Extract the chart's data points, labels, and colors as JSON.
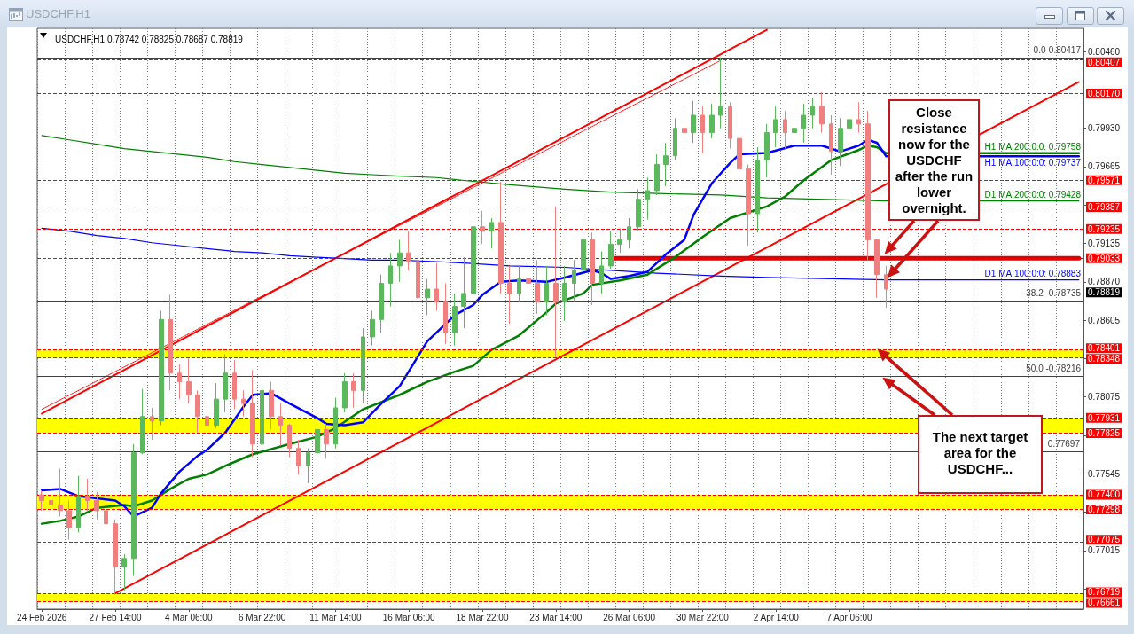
{
  "chart_data": {
    "type": "candlestick",
    "title": "USDCHF,H1",
    "subtitle": "USDCHF,H1 0.78742 0.78825 0.78687 0.78819",
    "categories": [
      "24 Feb 2026",
      null,
      null,
      null,
      null,
      null,
      null,
      null,
      "27 Feb 14:00",
      null,
      null,
      null,
      null,
      null,
      null,
      null,
      "4 Mar 06:00",
      null,
      null,
      null,
      null,
      null,
      null,
      null,
      "6 Mar 22:00",
      null,
      null,
      null,
      null,
      null,
      null,
      null,
      "11 Mar 14:00",
      null,
      null,
      null,
      null,
      null,
      null,
      null,
      "16 Mar 06:00",
      null,
      null,
      null,
      null,
      null,
      null,
      null,
      "18 Mar 22:00",
      null,
      null,
      null,
      null,
      null,
      null,
      null,
      "23 Mar 14:00",
      null,
      null,
      null,
      null,
      null,
      null,
      null,
      "26 Mar 06:00",
      null,
      null,
      null,
      null,
      null,
      null,
      null,
      "30 Mar 22:00",
      null,
      null,
      null,
      null,
      null,
      null,
      null,
      "2 Apr 14:00",
      null,
      null,
      null,
      null,
      null,
      null,
      null,
      "7 Apr 06:00",
      null,
      null,
      null,
      null,
      null,
      null,
      null,
      null,
      null,
      null,
      null,
      null,
      null,
      null,
      null,
      null,
      null,
      null,
      null,
      null,
      null,
      null,
      null,
      null,
      null
    ],
    "series": [
      {
        "type": "candlestick",
        "ohlc": [
          [
            0.774,
            0.7743,
            0.7729,
            0.7736
          ],
          [
            0.7736,
            0.7739,
            0.7723,
            0.7733
          ],
          [
            0.7733,
            0.7758,
            0.7725,
            0.7729
          ],
          [
            0.7729,
            0.7736,
            0.7709,
            0.7717
          ],
          [
            0.7717,
            0.7753,
            0.7714,
            0.7739
          ],
          [
            0.7739,
            0.7751,
            0.7729,
            0.7736
          ],
          [
            0.7736,
            0.7742,
            0.7723,
            0.7729
          ],
          [
            0.7729,
            0.7736,
            0.7716,
            0.772
          ],
          [
            0.772,
            0.7723,
            0.7671,
            0.769
          ],
          [
            0.769,
            0.7699,
            0.7674,
            0.7696
          ],
          [
            0.7696,
            0.7775,
            0.7684,
            0.7769
          ],
          [
            0.7769,
            0.7813,
            0.7768,
            0.7794
          ],
          [
            0.7794,
            0.78,
            0.7778,
            0.7791
          ],
          [
            0.7791,
            0.7867,
            0.7788,
            0.7861
          ],
          [
            0.7861,
            0.7878,
            0.7812,
            0.7824
          ],
          [
            0.7824,
            0.783,
            0.7806,
            0.7818
          ],
          [
            0.7818,
            0.7834,
            0.7803,
            0.7809
          ],
          [
            0.7809,
            0.7812,
            0.7783,
            0.7794
          ],
          [
            0.7794,
            0.7799,
            0.7782,
            0.7788
          ],
          [
            0.7788,
            0.7817,
            0.7786,
            0.7806
          ],
          [
            0.7806,
            0.7837,
            0.7797,
            0.7824
          ],
          [
            0.7824,
            0.7833,
            0.7799,
            0.7806
          ],
          [
            0.7806,
            0.7812,
            0.7794,
            0.7803
          ],
          [
            0.7803,
            0.7826,
            0.7766,
            0.7775
          ],
          [
            0.7775,
            0.7824,
            0.7756,
            0.7812
          ],
          [
            0.7812,
            0.7818,
            0.7785,
            0.7794
          ],
          [
            0.7794,
            0.7803,
            0.7774,
            0.7788
          ],
          [
            0.7788,
            0.7789,
            0.7766,
            0.7772
          ],
          [
            0.7772,
            0.7778,
            0.7754,
            0.776
          ],
          [
            0.776,
            0.7772,
            0.7748,
            0.7769
          ],
          [
            0.7769,
            0.7791,
            0.7766,
            0.7785
          ],
          [
            0.7785,
            0.7789,
            0.7765,
            0.7775
          ],
          [
            0.7775,
            0.7807,
            0.7772,
            0.78
          ],
          [
            0.78,
            0.7824,
            0.7797,
            0.7818
          ],
          [
            0.7818,
            0.7824,
            0.78,
            0.7812
          ],
          [
            0.7812,
            0.7855,
            0.7803,
            0.7849
          ],
          [
            0.7849,
            0.7867,
            0.7843,
            0.7861
          ],
          [
            0.7861,
            0.7892,
            0.7852,
            0.7886
          ],
          [
            0.7886,
            0.7907,
            0.787,
            0.7898
          ],
          [
            0.7898,
            0.7916,
            0.7887,
            0.7907
          ],
          [
            0.7907,
            0.7922,
            0.7895,
            0.7901
          ],
          [
            0.7901,
            0.7907,
            0.7869,
            0.7876
          ],
          [
            0.7876,
            0.7889,
            0.7864,
            0.7882
          ],
          [
            0.7882,
            0.79,
            0.7867,
            0.7873
          ],
          [
            0.7873,
            0.7886,
            0.7844,
            0.7852
          ],
          [
            0.7852,
            0.7879,
            0.7843,
            0.787
          ],
          [
            0.787,
            0.7904,
            0.7855,
            0.7879
          ],
          [
            0.7879,
            0.7936,
            0.7876,
            0.7925
          ],
          [
            0.7925,
            0.7936,
            0.7913,
            0.7922
          ],
          [
            0.7922,
            0.7931,
            0.791,
            0.7928
          ],
          [
            0.7928,
            0.7956,
            0.7879,
            0.7886
          ],
          [
            0.7886,
            0.7898,
            0.7858,
            0.7879
          ],
          [
            0.7879,
            0.7898,
            0.7873,
            0.7889
          ],
          [
            0.7889,
            0.7904,
            0.7876,
            0.7886
          ],
          [
            0.7886,
            0.7902,
            0.7865,
            0.7873
          ],
          [
            0.7873,
            0.7898,
            0.7864,
            0.7886
          ],
          [
            0.7886,
            0.7939,
            0.7835,
            0.7873
          ],
          [
            0.7873,
            0.7898,
            0.786,
            0.7886
          ],
          [
            0.7886,
            0.7902,
            0.7873,
            0.7895
          ],
          [
            0.7895,
            0.7924,
            0.7889,
            0.7916
          ],
          [
            0.7916,
            0.7921,
            0.7871,
            0.7886
          ],
          [
            0.7886,
            0.7908,
            0.7879,
            0.7898
          ],
          [
            0.7898,
            0.7922,
            0.7896,
            0.7913
          ],
          [
            0.7913,
            0.7924,
            0.7907,
            0.7916
          ],
          [
            0.7916,
            0.7931,
            0.791,
            0.7925
          ],
          [
            0.7925,
            0.7951,
            0.7922,
            0.7944
          ],
          [
            0.7944,
            0.7959,
            0.793,
            0.795
          ],
          [
            0.795,
            0.7975,
            0.7947,
            0.7968
          ],
          [
            0.7968,
            0.7983,
            0.7953,
            0.7974
          ],
          [
            0.7974,
            0.8,
            0.7971,
            0.7993
          ],
          [
            0.7993,
            0.8004,
            0.798,
            0.799
          ],
          [
            0.799,
            0.8012,
            0.7983,
            0.8002
          ],
          [
            0.8002,
            0.8008,
            0.7976,
            0.799
          ],
          [
            0.799,
            0.801,
            0.7986,
            0.8002
          ],
          [
            0.8002,
            0.8042,
            0.7993,
            0.8008
          ],
          [
            0.8008,
            0.8011,
            0.7979,
            0.7986
          ],
          [
            0.7986,
            0.7986,
            0.7959,
            0.7965
          ],
          [
            0.7965,
            0.7968,
            0.7912,
            0.7934
          ],
          [
            0.7934,
            0.798,
            0.7921,
            0.7971
          ],
          [
            0.7971,
            0.7996,
            0.7959,
            0.799
          ],
          [
            0.799,
            0.8008,
            0.798,
            0.7999
          ],
          [
            0.7999,
            0.8005,
            0.7979,
            0.799
          ],
          [
            0.799,
            0.8,
            0.7979,
            0.7993
          ],
          [
            0.7993,
            0.801,
            0.7983,
            0.8002
          ],
          [
            0.8002,
            0.8014,
            0.7993,
            0.8008
          ],
          [
            0.8008,
            0.8018,
            0.799,
            0.7996
          ],
          [
            0.7996,
            0.8002,
            0.7961,
            0.7977
          ],
          [
            0.7977,
            0.8,
            0.7967,
            0.7993
          ],
          [
            0.7993,
            0.8008,
            0.7983,
            0.7999
          ],
          [
            0.7999,
            0.8011,
            0.799,
            0.7996
          ],
          [
            0.7996,
            0.8005,
            0.7902,
            0.7916
          ],
          [
            0.7916,
            0.7916,
            0.7876,
            0.7892
          ],
          [
            0.7892,
            0.7898,
            0.7869,
            0.7882
          ],
          null,
          null,
          null,
          null,
          null,
          null,
          null,
          null,
          null,
          null,
          null,
          null,
          null,
          null,
          null,
          null,
          null,
          null,
          null,
          null,
          null
        ],
        "colors": [
          "#f08080",
          "#f08080",
          "#f08080",
          "#f08080",
          "#5cb85c",
          "#f08080",
          "#f08080",
          "#f08080",
          "#f08080",
          "#5cb85c",
          "#5cb85c",
          "#5cb85c",
          "#f08080",
          "#5cb85c",
          "#f08080",
          "#f08080",
          "#f08080",
          "#f08080",
          "#f08080",
          "#5cb85c",
          "#5cb85c",
          "#f08080",
          "#f08080",
          "#f08080",
          "#5cb85c",
          "#f08080",
          "#f08080",
          "#f08080",
          "#f08080",
          "#5cb85c",
          "#5cb85c",
          "#f08080",
          "#5cb85c",
          "#5cb85c",
          "#f08080",
          "#5cb85c",
          "#5cb85c",
          "#5cb85c",
          "#5cb85c",
          "#5cb85c",
          "#f08080",
          "#f08080",
          "#5cb85c",
          "#f08080",
          "#f08080",
          "#5cb85c",
          "#5cb85c",
          "#5cb85c",
          "#f08080",
          "#5cb85c",
          "#f08080",
          "#f08080",
          "#5cb85c",
          "#f08080",
          "#f08080",
          "#5cb85c",
          "#f08080",
          "#5cb85c",
          "#5cb85c",
          "#5cb85c",
          "#f08080",
          "#5cb85c",
          "#5cb85c",
          "#5cb85c",
          "#5cb85c",
          "#5cb85c",
          "#5cb85c",
          "#5cb85c",
          "#5cb85c",
          "#5cb85c",
          "#f08080",
          "#5cb85c",
          "#f08080",
          "#5cb85c",
          "#5cb85c",
          "#f08080",
          "#f08080",
          "#f08080",
          "#5cb85c",
          "#5cb85c",
          "#5cb85c",
          "#f08080",
          "#5cb85c",
          "#5cb85c",
          "#5cb85c",
          "#f08080",
          "#f08080",
          "#5cb85c",
          "#5cb85c",
          "#f08080",
          "#f08080",
          "#f08080",
          "#f08080",
          null,
          null,
          null,
          null,
          null,
          null,
          null,
          null,
          null,
          null,
          null,
          null,
          null,
          null,
          null,
          null,
          null,
          null,
          null,
          null,
          null
        ]
      },
      {
        "type": "line",
        "color": "#ff0000",
        "values": [
          0.7796,
          null,
          null,
          null,
          null,
          null,
          null,
          null,
          null,
          null,
          null,
          null,
          null,
          null,
          null,
          null,
          null,
          null,
          null,
          null,
          null,
          null,
          null,
          null,
          null,
          null,
          null,
          null,
          null,
          null,
          null,
          null,
          null,
          null,
          null,
          null,
          null,
          null,
          null,
          null,
          null,
          null,
          null,
          null,
          null,
          null,
          null,
          null,
          null,
          null,
          null,
          null,
          null,
          null,
          null,
          null,
          null,
          null,
          null,
          null,
          null,
          null,
          null,
          null,
          null,
          null,
          null,
          null,
          null,
          null,
          null,
          null,
          null,
          null,
          null,
          null,
          null,
          null,
          null,
          0.8061,
          null,
          null,
          null,
          null,
          null,
          null,
          null,
          null,
          null,
          null,
          null,
          null,
          null,
          null,
          null,
          null,
          null,
          null,
          null,
          null,
          null,
          null,
          null,
          null,
          null,
          null,
          null,
          null,
          null,
          null,
          null,
          null,
          null,
          null
        ]
      },
      {
        "type": "line",
        "color": "#ff0000",
        "line_style": "dotted",
        "values": [
          0.7799,
          null,
          null,
          null,
          null,
          null,
          null,
          null,
          null,
          null,
          null,
          null,
          null,
          null,
          null,
          null,
          null,
          null,
          null,
          null,
          null,
          null,
          null,
          null,
          null,
          null,
          null,
          null,
          null,
          null,
          null,
          null,
          null,
          null,
          null,
          null,
          null,
          null,
          null,
          null,
          null,
          null,
          null,
          null,
          null,
          null,
          null,
          null,
          null,
          null,
          null,
          null,
          null,
          null,
          null,
          null,
          null,
          null,
          null,
          null,
          null,
          null,
          null,
          null,
          null,
          null,
          null,
          null,
          null,
          null,
          null,
          null,
          null,
          null,
          0.804,
          null,
          null,
          null,
          null,
          null,
          null,
          null,
          null,
          null,
          null,
          null,
          null,
          null,
          null,
          null,
          null,
          null,
          null,
          null,
          null,
          null,
          null,
          null,
          null,
          null,
          null,
          null,
          null,
          null,
          null,
          null,
          null,
          null,
          null,
          null,
          null,
          null,
          null,
          null
        ]
      },
      {
        "type": "line",
        "color": "#ff0000",
        "values": [
          null,
          null,
          null,
          null,
          null,
          null,
          null,
          null,
          0.7672,
          null,
          null,
          null,
          null,
          null,
          null,
          null,
          null,
          null,
          null,
          null,
          null,
          null,
          null,
          null,
          null,
          null,
          null,
          null,
          null,
          null,
          null,
          null,
          null,
          null,
          null,
          null,
          null,
          null,
          null,
          null,
          null,
          null,
          null,
          null,
          null,
          null,
          null,
          null,
          null,
          null,
          null,
          null,
          null,
          null,
          null,
          null,
          null,
          null,
          null,
          null,
          null,
          null,
          null,
          null,
          null,
          null,
          null,
          null,
          null,
          null,
          null,
          null,
          null,
          null,
          null,
          null,
          null,
          null,
          null,
          null,
          null,
          null,
          null,
          null,
          null,
          null,
          null,
          null,
          null,
          null,
          null,
          null,
          null,
          null,
          null,
          null,
          null,
          null,
          null,
          null,
          null,
          null,
          null,
          null,
          null,
          null,
          null,
          null,
          null,
          null,
          null,
          null,
          null,
          0.8025
        ]
      },
      {
        "type": "line",
        "color": "#e00000",
        "values": [
          null,
          null,
          null,
          null,
          null,
          null,
          null,
          null,
          null,
          null,
          null,
          null,
          null,
          null,
          null,
          null,
          null,
          null,
          null,
          null,
          null,
          null,
          null,
          null,
          null,
          null,
          null,
          null,
          null,
          null,
          null,
          null,
          null,
          null,
          null,
          null,
          null,
          null,
          null,
          null,
          null,
          null,
          null,
          null,
          null,
          null,
          null,
          null,
          null,
          null,
          null,
          null,
          null,
          null,
          null,
          null,
          null,
          null,
          null,
          null,
          null,
          null,
          0.79033,
          null,
          null,
          null,
          null,
          null,
          null,
          null,
          null,
          null,
          null,
          null,
          null,
          null,
          null,
          null,
          null,
          null,
          null,
          null,
          null,
          null,
          null,
          null,
          null,
          null,
          null,
          null,
          null,
          null,
          null,
          null,
          null,
          null,
          null,
          null,
          null,
          null,
          null,
          null,
          null,
          null,
          null,
          null,
          null,
          null,
          null,
          null,
          null,
          null,
          null,
          0.79033
        ]
      },
      {
        "type": "line",
        "name": "D1 MA:200:0:0: 0.79428",
        "color": "#008000",
        "values": [
          0.7988,
          null,
          null,
          0.7985,
          null,
          null,
          0.7982,
          null,
          null,
          0.7979,
          null,
          null,
          0.7977,
          null,
          null,
          0.7975,
          null,
          null,
          0.7973,
          null,
          null,
          0.797,
          null,
          null,
          0.7968,
          null,
          null,
          0.7966,
          null,
          null,
          0.7964,
          null,
          null,
          0.7962,
          null,
          null,
          0.7961,
          null,
          null,
          0.796,
          null,
          null,
          null,
          0.7959,
          null,
          null,
          0.7957,
          null,
          null,
          null,
          null,
          0.7954,
          null,
          null,
          null,
          null,
          null,
          0.7951,
          null,
          null,
          null,
          null,
          0.7949,
          null,
          null,
          null,
          null,
          0.7948,
          null,
          null,
          null,
          null,
          null,
          null,
          0.7947,
          null,
          null,
          null,
          null,
          0.7945,
          null,
          null,
          null,
          null,
          null,
          null,
          null,
          null,
          null,
          null,
          null,
          null,
          0.79428,
          null,
          null,
          null,
          null,
          null,
          null,
          null,
          null,
          null,
          null,
          null,
          null,
          null,
          null,
          null,
          null,
          null,
          null,
          null,
          null,
          0.79428
        ]
      },
      {
        "type": "line",
        "name": "D1 MA:100:0:0: 0.78883",
        "color": "#0000ff",
        "values": [
          0.7924,
          null,
          null,
          0.7922,
          null,
          null,
          0.7919,
          null,
          null,
          0.7917,
          null,
          null,
          0.7914,
          null,
          null,
          0.7912,
          null,
          null,
          0.791,
          null,
          null,
          0.7908,
          null,
          null,
          0.7907,
          null,
          null,
          0.7905,
          null,
          null,
          0.7904,
          null,
          null,
          0.7903,
          null,
          null,
          0.7902,
          null,
          null,
          0.7902,
          null,
          null,
          null,
          0.7901,
          null,
          null,
          0.79,
          null,
          null,
          null,
          null,
          0.7898,
          null,
          null,
          null,
          null,
          null,
          0.7897,
          null,
          null,
          null,
          null,
          0.7895,
          null,
          null,
          null,
          null,
          0.7893,
          null,
          null,
          null,
          null,
          null,
          null,
          0.7891,
          null,
          null,
          null,
          null,
          0.789,
          null,
          null,
          null,
          null,
          null,
          null,
          null,
          null,
          null,
          null,
          null,
          null,
          0.78883,
          null,
          null,
          null,
          null,
          null,
          null,
          null,
          null,
          null,
          null,
          null,
          null,
          null,
          null,
          null,
          null,
          null,
          null,
          null,
          null,
          0.78883
        ]
      },
      {
        "type": "line",
        "name": "H1 MA:200:0:0: 0.79758",
        "color": "#008000",
        "values": [
          0.772,
          null,
          0.7722,
          null,
          0.7725,
          null,
          0.7731,
          null,
          null,
          0.7733,
          0.7732,
          null,
          0.7736,
          null,
          0.7744,
          null,
          0.7751,
          null,
          0.7754,
          null,
          0.776,
          null,
          null,
          0.7768,
          null,
          null,
          null,
          0.7775,
          null,
          null,
          0.778,
          null,
          0.7786,
          null,
          null,
          0.7799,
          null,
          null,
          null,
          0.7809,
          null,
          null,
          0.7818,
          null,
          null,
          0.7825,
          null,
          0.7829,
          null,
          0.784,
          null,
          null,
          0.785,
          null,
          null,
          0.7866,
          0.7872,
          null,
          null,
          0.7879,
          0.7885,
          null,
          null,
          0.7888,
          null,
          null,
          0.7892,
          null,
          null,
          0.7904,
          null,
          null,
          0.7918,
          null,
          null,
          0.7931,
          null,
          null,
          null,
          0.7939,
          null,
          0.7946,
          null,
          0.7957,
          null,
          null,
          0.7971,
          null,
          null,
          0.7978,
          0.7981,
          0.798,
          0.79758,
          null,
          null,
          null,
          null,
          null,
          null,
          null,
          null,
          null,
          null,
          null,
          null,
          null,
          null,
          null,
          null,
          null,
          null,
          null,
          null,
          0.79758
        ]
      },
      {
        "type": "line",
        "name": "H1 MA:100:0:0: 0.79737",
        "color": "#0000ff",
        "values": [
          0.7743,
          null,
          0.7744,
          null,
          0.7739,
          null,
          null,
          null,
          0.7736,
          0.7732,
          0.7725,
          null,
          0.7731,
          0.7741,
          null,
          0.7756,
          null,
          0.7767,
          0.7771,
          null,
          0.7783,
          null,
          0.7801,
          0.7809,
          null,
          0.781,
          null,
          0.7803,
          null,
          null,
          0.7793,
          0.7789,
          null,
          0.7788,
          null,
          0.779,
          null,
          0.7803,
          null,
          0.7815,
          null,
          null,
          0.7846,
          null,
          null,
          0.7864,
          null,
          0.7871,
          0.7878,
          null,
          0.7887,
          null,
          0.7888,
          null,
          null,
          0.7887,
          null,
          0.789,
          null,
          null,
          0.7895,
          0.7893,
          0.7889,
          null,
          0.7891,
          null,
          0.7894,
          null,
          0.7906,
          null,
          0.7916,
          0.7933,
          null,
          0.7955,
          null,
          0.7969,
          0.7975,
          null,
          null,
          0.7976,
          null,
          null,
          0.7981,
          null,
          null,
          0.7981,
          null,
          0.7977,
          null,
          0.7981,
          0.7985,
          0.7983,
          0.79737,
          null,
          null,
          null,
          null,
          null,
          null,
          null,
          null,
          null,
          null,
          null,
          null,
          null,
          null,
          null,
          null,
          null,
          null,
          null,
          null,
          0.79737
        ]
      }
    ],
    "ylim": [
      0.7661,
      0.8062
    ],
    "yticks": [
      {
        "value": 0.8046,
        "label": "0.80460"
      },
      {
        "value": 0.80195,
        "label": null
      },
      {
        "value": 0.7993,
        "label": "0.79930"
      },
      0.79665,
      {
        "value": 0.794,
        "label": null
      },
      0.79135,
      {
        "value": 0.7887,
        "label": "0.78870"
      },
      0.78605,
      {
        "value": 0.7834,
        "label": null
      },
      0.78075,
      {
        "value": 0.7781,
        "label": null
      },
      0.77545,
      {
        "value": 0.7728,
        "label": null
      },
      0.77015,
      {
        "value": 0.7675,
        "label": null
      }
    ],
    "grid": "x",
    "marker": "none",
    "ref_lines": [
      {
        "axis": "y",
        "value": 0.80407,
        "label": "0.80407",
        "color": "#ff0000",
        "line_style": "dashed"
      },
      {
        "axis": "y",
        "value": 0.8017,
        "label": "0.80170",
        "color": "#ff0000",
        "line_style": "dashed"
      },
      {
        "axis": "y",
        "value": 0.79571,
        "label": "0.79571",
        "color": "#ff0000",
        "line_style": "dashed"
      },
      {
        "axis": "y",
        "value": 0.79387,
        "label": "0.79387",
        "color": "#ff0000",
        "line_style": "dashed"
      },
      {
        "axis": "y",
        "value": 0.79235,
        "label": "0.79235",
        "color": "#ff0000",
        "line_style": "dashed"
      },
      {
        "axis": "y",
        "value": 0.79033,
        "label": "0.79033",
        "color": "#ff0000",
        "line_style": "dashed"
      },
      {
        "axis": "y",
        "value": 0.78401,
        "label": "0.78401",
        "color": "#ff0000",
        "line_style": "dashed"
      },
      {
        "axis": "y",
        "value": 0.78348,
        "label": "0.78348",
        "color": "#ff0000",
        "line_style": "dashed"
      },
      {
        "axis": "y",
        "value": 0.77931,
        "label": "0.77931",
        "color": "#ff0000",
        "line_style": "dashed"
      },
      {
        "axis": "y",
        "value": 0.77825,
        "label": "0.77825",
        "color": "#ff0000",
        "line_style": "dashed"
      },
      {
        "axis": "y",
        "value": 0.774,
        "label": "0.77400",
        "color": "#ff0000",
        "line_style": "dashed"
      },
      {
        "axis": "y",
        "value": 0.77298,
        "label": "0.77298",
        "color": "#ff0000",
        "line_style": "dashed"
      },
      {
        "axis": "y",
        "value": 0.77075,
        "label": "0.77075",
        "color": "#ff0000",
        "line_style": "dashed"
      },
      {
        "axis": "y",
        "value": 0.76719,
        "label": "0.76719",
        "color": "#ff0000",
        "line_style": "dashed"
      },
      {
        "axis": "y",
        "value": 0.76661,
        "label": "0.76661",
        "color": "#ff0000",
        "line_style": "dashed"
      },
      {
        "axis": "y",
        "value": 0.80417,
        "color": "#404040",
        "line_style": "solid"
      },
      {
        "axis": "y",
        "value": 0.78735,
        "color": "#404040",
        "line_style": "solid"
      },
      {
        "axis": "y",
        "value": 0.78216,
        "color": "#404040",
        "line_style": "solid"
      },
      {
        "axis": "y",
        "value": 0.77697,
        "label": "0.77697",
        "color": "#404040",
        "line_style": "solid"
      }
    ],
    "bands": [
      {
        "axis": "y",
        "from": 0.78348,
        "to": 0.78401,
        "color": "#ffff00"
      },
      {
        "axis": "y",
        "from": 0.77825,
        "to": 0.77931,
        "color": "#ffff00"
      },
      {
        "axis": "y",
        "from": 0.77298,
        "to": 0.774,
        "color": "#ffff00"
      },
      {
        "axis": "y",
        "from": 0.76661,
        "to": 0.76719,
        "color": "#ffff00"
      }
    ],
    "annotations": [
      "Close resistance now for the USDCHF after the run lower overnight.",
      "The next target area for the USDCHF...",
      "0.78819",
      {
        "text": "0.0-0.80417",
        "y": 0.80417
      },
      {
        "text": "38.2- 0.78735",
        "y": 0.78735
      },
      {
        "text": "50.0 -0.78216",
        "y": 0.78216
      }
    ]
  }
}
